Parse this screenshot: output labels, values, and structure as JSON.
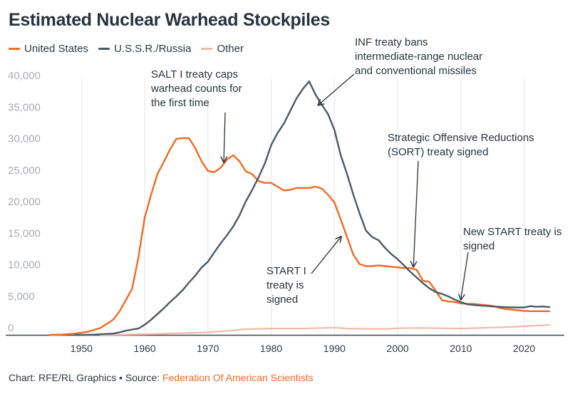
{
  "title": "Estimated Nuclear Warhead Stockpiles",
  "footer": {
    "credit": "Chart: RFE/RL Graphics • Source: ",
    "source": "Federation Of American Scientists"
  },
  "colors": {
    "us": "#ef6a23",
    "ussr": "#4a5a66",
    "other": "#f2b9a8",
    "grid": "#e4e4e4",
    "axis": "#3a4650"
  },
  "chart_data": {
    "type": "line",
    "title": "Estimated Nuclear Warhead Stockpiles",
    "xlabel": "",
    "ylabel": "",
    "xlim": [
      1945,
      2025
    ],
    "ylim": [
      0,
      40000
    ],
    "x_ticks": [
      1950,
      1960,
      1970,
      1980,
      1990,
      2000,
      2010,
      2020
    ],
    "y_ticks": [
      0,
      5000,
      10000,
      15000,
      20000,
      25000,
      30000,
      35000,
      40000
    ],
    "y_tick_labels": [
      "0",
      "5,000",
      "10,000",
      "15,000",
      "20,000",
      "25,000",
      "30,000",
      "35,000",
      "40,000"
    ],
    "grid": true,
    "legend_placement": "top-left",
    "series": [
      {
        "name": "United States",
        "color": "#ef6a23",
        "points": [
          [
            1945,
            0
          ],
          [
            1947,
            50
          ],
          [
            1949,
            200
          ],
          [
            1951,
            500
          ],
          [
            1953,
            1100
          ],
          [
            1955,
            2400
          ],
          [
            1956,
            3700
          ],
          [
            1957,
            5500
          ],
          [
            1958,
            7300
          ],
          [
            1959,
            12300
          ],
          [
            1960,
            18600
          ],
          [
            1961,
            22200
          ],
          [
            1962,
            25500
          ],
          [
            1963,
            27400
          ],
          [
            1964,
            29400
          ],
          [
            1965,
            31100
          ],
          [
            1966,
            31200
          ],
          [
            1967,
            31200
          ],
          [
            1968,
            29600
          ],
          [
            1969,
            27500
          ],
          [
            1970,
            26000
          ],
          [
            1971,
            25800
          ],
          [
            1972,
            26500
          ],
          [
            1973,
            27800
          ],
          [
            1974,
            28500
          ],
          [
            1975,
            27500
          ],
          [
            1976,
            25900
          ],
          [
            1977,
            25500
          ],
          [
            1978,
            24400
          ],
          [
            1979,
            24100
          ],
          [
            1980,
            24100
          ],
          [
            1981,
            23500
          ],
          [
            1982,
            22900
          ],
          [
            1983,
            23000
          ],
          [
            1984,
            23300
          ],
          [
            1985,
            23300
          ],
          [
            1986,
            23300
          ],
          [
            1987,
            23500
          ],
          [
            1988,
            23200
          ],
          [
            1989,
            22200
          ],
          [
            1990,
            21000
          ],
          [
            1991,
            18300
          ],
          [
            1992,
            15500
          ],
          [
            1993,
            12700
          ],
          [
            1994,
            11200
          ],
          [
            1995,
            10900
          ],
          [
            1996,
            10900
          ],
          [
            1997,
            11000
          ],
          [
            1998,
            10900
          ],
          [
            1999,
            10800
          ],
          [
            2000,
            10700
          ],
          [
            2001,
            10600
          ],
          [
            2002,
            10600
          ],
          [
            2003,
            10300
          ],
          [
            2004,
            8600
          ],
          [
            2005,
            8400
          ],
          [
            2006,
            7000
          ],
          [
            2007,
            5500
          ],
          [
            2008,
            5300
          ],
          [
            2009,
            5200
          ],
          [
            2010,
            5000
          ],
          [
            2011,
            4900
          ],
          [
            2012,
            4900
          ],
          [
            2013,
            4800
          ],
          [
            2014,
            4700
          ],
          [
            2015,
            4600
          ],
          [
            2016,
            4300
          ],
          [
            2017,
            4100
          ],
          [
            2018,
            4000
          ],
          [
            2019,
            3900
          ],
          [
            2020,
            3800
          ],
          [
            2021,
            3750
          ],
          [
            2022,
            3750
          ],
          [
            2023,
            3750
          ],
          [
            2024,
            3750
          ]
        ]
      },
      {
        "name": "U.S.S.R./Russia",
        "color": "#4a5a66",
        "points": [
          [
            1949,
            0
          ],
          [
            1950,
            5
          ],
          [
            1952,
            50
          ],
          [
            1954,
            150
          ],
          [
            1955,
            200
          ],
          [
            1956,
            400
          ],
          [
            1957,
            650
          ],
          [
            1958,
            850
          ],
          [
            1959,
            1000
          ],
          [
            1960,
            1600
          ],
          [
            1961,
            2400
          ],
          [
            1962,
            3300
          ],
          [
            1963,
            4200
          ],
          [
            1964,
            5200
          ],
          [
            1965,
            6100
          ],
          [
            1966,
            7100
          ],
          [
            1967,
            8300
          ],
          [
            1968,
            9400
          ],
          [
            1969,
            10700
          ],
          [
            1970,
            11600
          ],
          [
            1971,
            13100
          ],
          [
            1972,
            14500
          ],
          [
            1973,
            15800
          ],
          [
            1974,
            17200
          ],
          [
            1975,
            19000
          ],
          [
            1976,
            21200
          ],
          [
            1977,
            23000
          ],
          [
            1978,
            25000
          ],
          [
            1979,
            27200
          ],
          [
            1980,
            30100
          ],
          [
            1981,
            32000
          ],
          [
            1982,
            33500
          ],
          [
            1983,
            35500
          ],
          [
            1984,
            37500
          ],
          [
            1985,
            39000
          ],
          [
            1986,
            40200
          ],
          [
            1987,
            38100
          ],
          [
            1988,
            36500
          ],
          [
            1989,
            35000
          ],
          [
            1990,
            32500
          ],
          [
            1991,
            28500
          ],
          [
            1992,
            25500
          ],
          [
            1993,
            22200
          ],
          [
            1994,
            19200
          ],
          [
            1995,
            16500
          ],
          [
            1996,
            15500
          ],
          [
            1997,
            15000
          ],
          [
            1998,
            13800
          ],
          [
            1999,
            12800
          ],
          [
            2000,
            12000
          ],
          [
            2001,
            11000
          ],
          [
            2002,
            10000
          ],
          [
            2003,
            9100
          ],
          [
            2004,
            8200
          ],
          [
            2005,
            7400
          ],
          [
            2006,
            6800
          ],
          [
            2007,
            6500
          ],
          [
            2008,
            6100
          ],
          [
            2009,
            5600
          ],
          [
            2010,
            5200
          ],
          [
            2011,
            4850
          ],
          [
            2012,
            4750
          ],
          [
            2013,
            4650
          ],
          [
            2014,
            4600
          ],
          [
            2015,
            4500
          ],
          [
            2016,
            4450
          ],
          [
            2017,
            4400
          ],
          [
            2018,
            4350
          ],
          [
            2019,
            4350
          ],
          [
            2020,
            4350
          ],
          [
            2021,
            4550
          ],
          [
            2022,
            4450
          ],
          [
            2023,
            4500
          ],
          [
            2024,
            4400
          ]
        ]
      },
      {
        "name": "Other",
        "color": "#f2b9a8",
        "points": [
          [
            1953,
            0
          ],
          [
            1956,
            30
          ],
          [
            1960,
            100
          ],
          [
            1965,
            250
          ],
          [
            1970,
            400
          ],
          [
            1974,
            700
          ],
          [
            1976,
            900
          ],
          [
            1980,
            1000
          ],
          [
            1985,
            1000
          ],
          [
            1988,
            1100
          ],
          [
            1990,
            1150
          ],
          [
            1992,
            1000
          ],
          [
            1995,
            950
          ],
          [
            1998,
            950
          ],
          [
            2000,
            1050
          ],
          [
            2003,
            1100
          ],
          [
            2007,
            1050
          ],
          [
            2010,
            1000
          ],
          [
            2013,
            1100
          ],
          [
            2016,
            1200
          ],
          [
            2019,
            1300
          ],
          [
            2021,
            1450
          ],
          [
            2023,
            1500
          ],
          [
            2024,
            1600
          ]
        ]
      }
    ],
    "annotations": [
      {
        "lines": [
          "SALT I treaty caps",
          "warhead counts for",
          "the first time"
        ],
        "target": [
          1972.5,
          27500
        ]
      },
      {
        "lines": [
          "INF treaty bans",
          "intermediate-range nuclear",
          "and conventional missiles"
        ],
        "target": [
          1987.5,
          36500
        ]
      },
      {
        "lines": [
          "Strategic Offensive Reductions",
          "(SORT) treaty signed"
        ],
        "target": [
          2002.5,
          10900
        ]
      },
      {
        "lines": [
          "START I",
          "treaty is",
          "signed"
        ],
        "target": [
          1991,
          15500
        ]
      },
      {
        "lines": [
          "New START treaty is",
          "signed"
        ],
        "target": [
          2010,
          5700
        ]
      }
    ]
  }
}
